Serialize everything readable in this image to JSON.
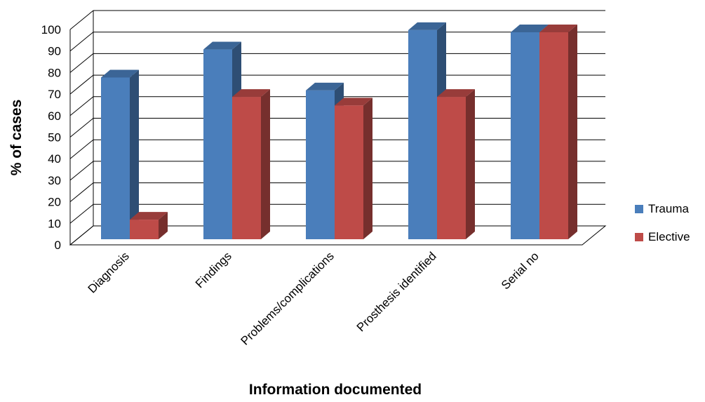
{
  "chart_data": {
    "type": "bar",
    "categories": [
      "Diagnosis",
      "Findings",
      "Problems/complications",
      "Prosthesis identified",
      "Serial no"
    ],
    "series": [
      {
        "name": "Trauma",
        "values": [
          79,
          92,
          73,
          101,
          100
        ],
        "color": "#4a7ebb"
      },
      {
        "name": "Elective",
        "values": [
          13,
          70,
          66,
          70,
          100
        ],
        "color": "#be4b48"
      }
    ],
    "xlabel": "Information documented",
    "ylabel": "% of cases",
    "ylim": [
      0,
      100
    ],
    "yticks": [
      0,
      10,
      20,
      30,
      40,
      50,
      60,
      70,
      80,
      90,
      100
    ],
    "grid": true,
    "legend": "right",
    "style": "3d-clustered-column"
  }
}
